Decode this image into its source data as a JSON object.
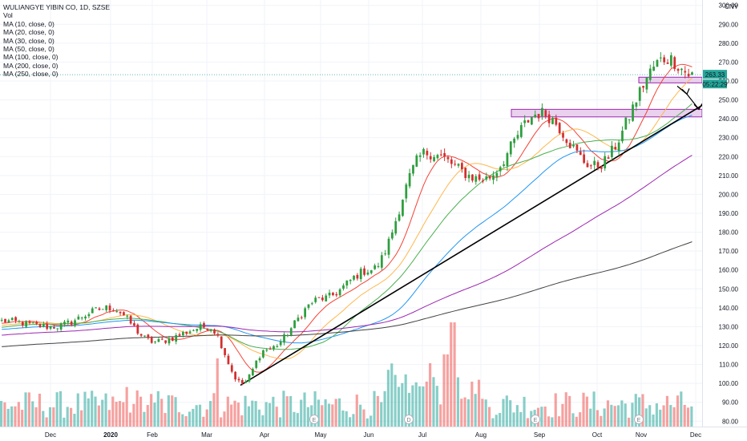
{
  "header": {
    "title": "WULIANGYE YIBIN CO, 1D, SZSE",
    "vol_label": "Vol",
    "indicators": [
      "MA (10, close, 0)",
      "MA (20, close, 0)",
      "MA (30, close, 0)",
      "MA (50, close, 0)",
      "MA (100, close, 0)",
      "MA (200, close, 0)",
      "MA (250, close, 0)"
    ]
  },
  "price_axis": {
    "currency": "CNY",
    "ticks": [
      "300.00",
      "290.00",
      "280.00",
      "270.00",
      "260.00",
      "250.00",
      "240.00",
      "230.00",
      "220.00",
      "210.00",
      "200.00",
      "190.00",
      "180.00",
      "170.00",
      "160.00",
      "150.00",
      "140.00",
      "130.00",
      "120.00",
      "110.00",
      "100.00",
      "90.00",
      "80.00"
    ],
    "current_price": "263.33",
    "countdown": "05:22:29",
    "price_label_color": "#26a69a"
  },
  "time_axis": {
    "labels": [
      "Dec",
      "2020",
      "Feb",
      "Mar",
      "Apr",
      "May",
      "Jun",
      "Jul",
      "Aug",
      "Sep",
      "Oct",
      "Nov",
      "Dec"
    ]
  },
  "event_markers": [
    "E",
    "E",
    "D",
    "E",
    "E"
  ],
  "colors": {
    "up": "#26a69a",
    "down": "#ef5350",
    "up_candle": "#2e9e3e",
    "down_candle": "#d32f2f",
    "ma10": "#f44336",
    "ma20": "#ffb74d",
    "ma30": "#4caf50",
    "ma50": "#2196f3",
    "ma100": "#9c27b0",
    "ma200": "#424242",
    "trend": "#000000",
    "zone_fill": "#e1bee7",
    "zone_border": "#9c27b0"
  },
  "chart_data": {
    "type": "candlestick",
    "symbol": "WULIANGYE YIBIN CO",
    "interval": "1D",
    "exchange": "SZSE",
    "ylim": [
      78,
      302
    ],
    "support_zones": [
      {
        "low": 241,
        "high": 245
      },
      {
        "low": 259,
        "high": 262
      }
    ],
    "trendline": [
      {
        "date": "2020-03-24",
        "price": 99
      },
      {
        "date": "2020-11-30",
        "price": 252
      }
    ],
    "anchors": [
      {
        "date": "Nov 2019",
        "price": 133
      },
      {
        "date": "Dec 2019",
        "price": 130
      },
      {
        "date": "Jan 2020",
        "price": 140
      },
      {
        "date": "Feb 2020",
        "price": 122
      },
      {
        "date": "Mar 2020",
        "price": 130
      },
      {
        "date": "late Mar 2020",
        "price": 100
      },
      {
        "date": "Apr 2020",
        "price": 118
      },
      {
        "date": "May 2020",
        "price": 145
      },
      {
        "date": "Jun 2020",
        "price": 160
      },
      {
        "date": "Jul 2020",
        "price": 222
      },
      {
        "date": "Aug 2020",
        "price": 208
      },
      {
        "date": "Sep 2020",
        "price": 243
      },
      {
        "date": "Oct 2020",
        "price": 215
      },
      {
        "date": "Nov 2020",
        "price": 272
      },
      {
        "date": "late Nov 2020",
        "price": 263
      }
    ]
  }
}
